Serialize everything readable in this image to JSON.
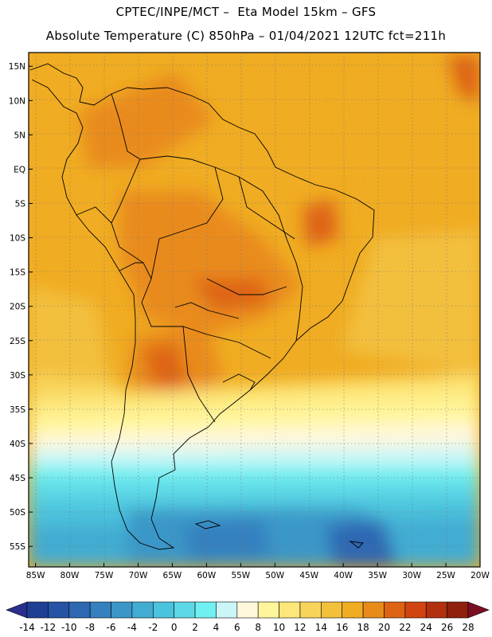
{
  "title_line1": "CPTEC/INPE/MCT –  Eta Model 15km – GFS",
  "title_line2": "Absolute Temperature (C) 850hPa – 01/04/2021 12UTC fct=211h",
  "map": {
    "extent": {
      "lon": [
        -86,
        -20
      ],
      "lat": [
        -58,
        17
      ]
    },
    "lat_ticks": [
      {
        "value": 15,
        "label": "15N"
      },
      {
        "value": 10,
        "label": "10N"
      },
      {
        "value": 5,
        "label": "5N"
      },
      {
        "value": 0,
        "label": "EQ"
      },
      {
        "value": -5,
        "label": "5S"
      },
      {
        "value": -10,
        "label": "10S"
      },
      {
        "value": -15,
        "label": "15S"
      },
      {
        "value": -20,
        "label": "20S"
      },
      {
        "value": -25,
        "label": "25S"
      },
      {
        "value": -30,
        "label": "30S"
      },
      {
        "value": -35,
        "label": "35S"
      },
      {
        "value": -40,
        "label": "40S"
      },
      {
        "value": -45,
        "label": "45S"
      },
      {
        "value": -50,
        "label": "50S"
      },
      {
        "value": -55,
        "label": "55S"
      }
    ],
    "lon_ticks": [
      {
        "value": -85,
        "label": "85W"
      },
      {
        "value": -80,
        "label": "80W"
      },
      {
        "value": -75,
        "label": "75W"
      },
      {
        "value": -70,
        "label": "70W"
      },
      {
        "value": -65,
        "label": "65W"
      },
      {
        "value": -60,
        "label": "60W"
      },
      {
        "value": -55,
        "label": "55W"
      },
      {
        "value": -50,
        "label": "50W"
      },
      {
        "value": -45,
        "label": "45W"
      },
      {
        "value": -40,
        "label": "40W"
      },
      {
        "value": -35,
        "label": "35W"
      },
      {
        "value": -30,
        "label": "30W"
      },
      {
        "value": -25,
        "label": "25W"
      },
      {
        "value": -20,
        "label": "20W"
      }
    ],
    "gridlines": "dotted"
  },
  "colorbar": {
    "levels": [
      -14,
      -12,
      -10,
      -8,
      -6,
      -4,
      -2,
      0,
      2,
      4,
      6,
      8,
      10,
      12,
      14,
      16,
      18,
      20,
      22,
      24,
      26,
      28
    ],
    "colors": [
      "#1f3f94",
      "#2753a4",
      "#2e68b3",
      "#3580bf",
      "#3b97c8",
      "#42acd2",
      "#4cc3dd",
      "#5dd8e6",
      "#70f0f0",
      "#cbf6f7",
      "#fff8dc",
      "#fff59a",
      "#fde77a",
      "#f8d45a",
      "#f3c03c",
      "#f0ac22",
      "#e98b1a",
      "#de6313",
      "#cf4410",
      "#b3300e",
      "#8f200c"
    ],
    "under_color": "#2a2e8c",
    "over_color": "#7a0f23"
  }
}
